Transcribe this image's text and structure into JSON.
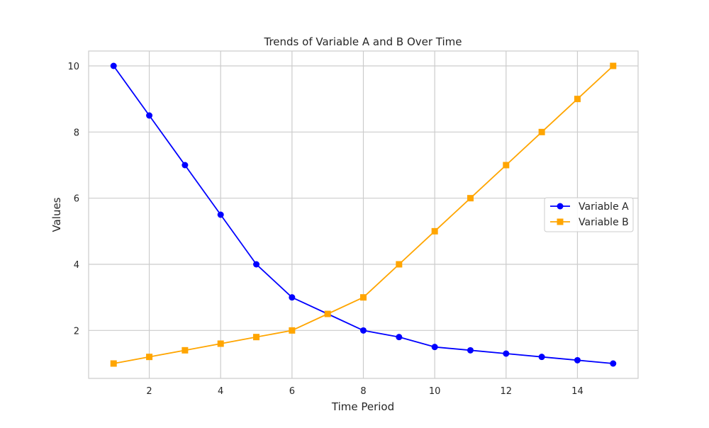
{
  "chart_data": {
    "type": "line",
    "title": "Trends of Variable A and B Over Time",
    "xlabel": "Time Period",
    "ylabel": "Values",
    "xlim": [
      0.3,
      15.7
    ],
    "ylim": [
      0.55,
      10.45
    ],
    "xticks": [
      2,
      4,
      6,
      8,
      10,
      12,
      14
    ],
    "yticks": [
      2,
      4,
      6,
      8,
      10
    ],
    "grid": true,
    "legend_position": "center-right",
    "x": [
      1,
      2,
      3,
      4,
      5,
      6,
      7,
      8,
      9,
      10,
      11,
      12,
      13,
      14,
      15
    ],
    "series": [
      {
        "name": "Variable A",
        "color": "#0000ff",
        "marker": "circle",
        "values": [
          10,
          8.5,
          7,
          5.5,
          4,
          3,
          2.5,
          2,
          1.8,
          1.5,
          1.4,
          1.3,
          1.2,
          1.1,
          1
        ]
      },
      {
        "name": "Variable B",
        "color": "#ffa500",
        "marker": "square",
        "values": [
          1,
          1.2,
          1.4,
          1.6,
          1.8,
          2,
          2.5,
          3,
          4,
          5,
          6,
          7,
          8,
          9,
          10
        ]
      }
    ]
  }
}
